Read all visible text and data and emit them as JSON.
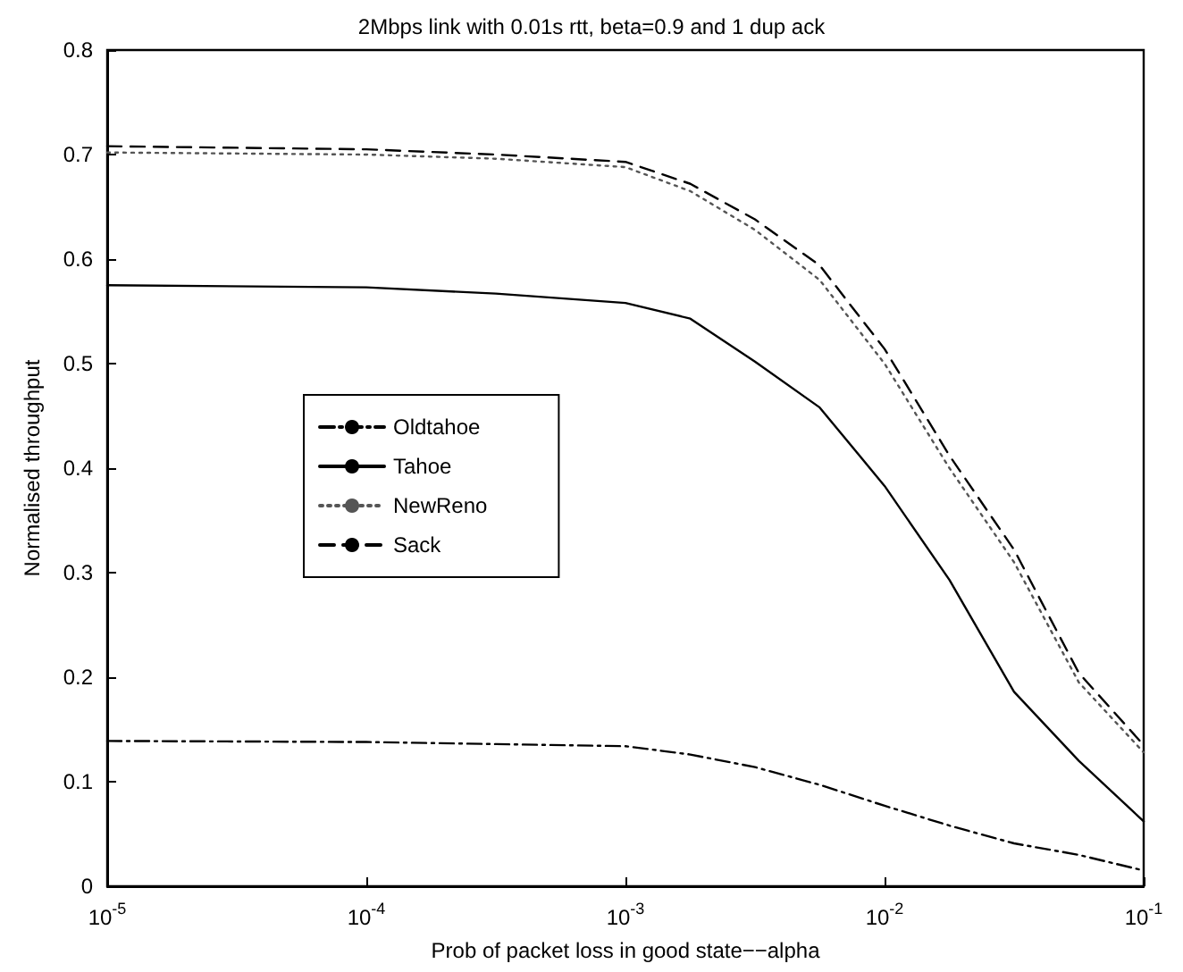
{
  "chart_data": {
    "type": "line",
    "title": "2Mbps link with 0.01s rtt, beta=0.9 and 1 dup ack",
    "xlabel": "Prob of packet loss in good state−−alpha",
    "ylabel": "Normalised throughput",
    "x": [
      1e-05,
      0.0001,
      0.000316,
      0.001,
      0.00178,
      0.00316,
      0.00562,
      0.01,
      0.0178,
      0.0316,
      0.0562,
      0.1
    ],
    "series": [
      {
        "name": "Oldtahoe",
        "color": "#000000",
        "line_style": "dashdot",
        "values": [
          0.139,
          0.138,
          0.136,
          0.134,
          0.126,
          0.114,
          0.097,
          0.077,
          0.058,
          0.041,
          0.03,
          0.015
        ]
      },
      {
        "name": "Tahoe",
        "color": "#000000",
        "line_style": "solid",
        "values": [
          0.575,
          0.573,
          0.567,
          0.558,
          0.543,
          0.502,
          0.458,
          0.383,
          0.293,
          0.186,
          0.12,
          0.062
        ]
      },
      {
        "name": "NewReno",
        "color": "#555555",
        "line_style": "dotted",
        "values": [
          0.702,
          0.7,
          0.696,
          0.688,
          0.665,
          0.628,
          0.58,
          0.5,
          0.4,
          0.31,
          0.195,
          0.128
        ]
      },
      {
        "name": "Sack",
        "color": "#000000",
        "line_style": "dashed",
        "values": [
          0.708,
          0.705,
          0.7,
          0.693,
          0.672,
          0.638,
          0.594,
          0.514,
          0.412,
          0.322,
          0.204,
          0.135
        ]
      }
    ],
    "log": "x",
    "grid": false,
    "legend": "left",
    "marker": "none",
    "xlim": [
      1e-05,
      0.1
    ],
    "xticks": [
      {
        "value": 1e-05,
        "label": "10$^{-5}$"
      },
      {
        "value": 0.0001,
        "label": "10$^{-4}$"
      },
      {
        "value": 0.001,
        "label": "10$^{-3}$"
      },
      {
        "value": 0.01,
        "label": "10$^{-2}$"
      },
      {
        "value": 0.1,
        "label": "10$^{-1}$"
      }
    ],
    "ylim": [
      0,
      0.8
    ],
    "yticks": [
      0,
      0.1,
      0.2,
      0.3,
      0.4,
      0.5,
      0.6,
      0.7,
      0.8
    ]
  }
}
